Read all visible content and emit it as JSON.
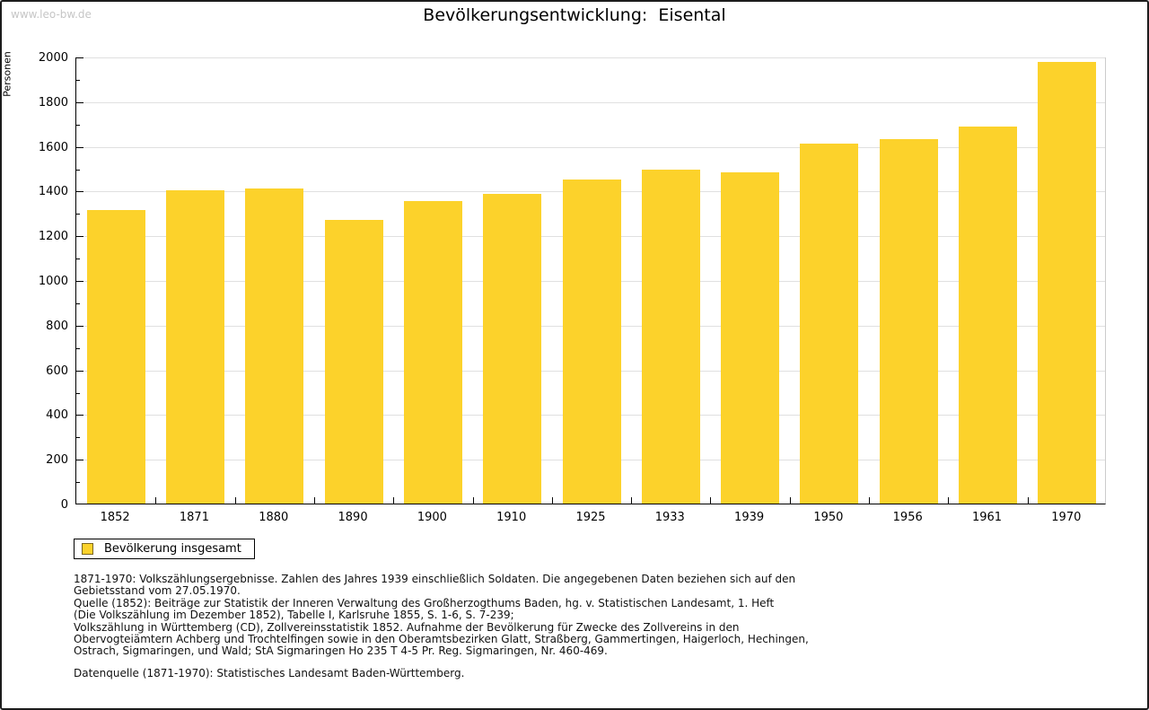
{
  "watermark": "www.leo-bw.de",
  "title": "Bevölkerungsentwicklung:  Eisental",
  "chart_data": {
    "type": "bar",
    "title": "Bevölkerungsentwicklung: Eisental",
    "categories": [
      "1852",
      "1871",
      "1880",
      "1890",
      "1900",
      "1910",
      "1925",
      "1933",
      "1939",
      "1950",
      "1956",
      "1961",
      "1970"
    ],
    "values": [
      1315,
      1400,
      1410,
      1270,
      1355,
      1385,
      1450,
      1495,
      1480,
      1610,
      1630,
      1685,
      1975
    ],
    "xlabel": "",
    "ylabel": "Personen",
    "ylim": [
      0,
      2000
    ],
    "ytick_step": 200,
    "yminor_step": 100,
    "grid": true,
    "bar_color": "#fcd22b",
    "legend": [
      {
        "label": "Bevölkerung insgesamt",
        "color": "#fcd22b"
      }
    ],
    "legend_position": "bottom-left"
  },
  "footer": {
    "notes": "1871-1970: Volkszählungsergebnisse. Zahlen des Jahres 1939 einschließlich Soldaten. Die angegebenen Daten beziehen sich auf den\nGebietsstand vom 27.05.1970.\nQuelle (1852): Beiträge zur Statistik der Inneren Verwaltung des Großherzogthums Baden, hg. v. Statistischen Landesamt, 1. Heft\n(Die Volkszählung im Dezember 1852), Tabelle I, Karlsruhe 1855, S. 1-6, S. 7-239;\nVolkszählung in Württemberg (CD), Zollvereinsstatistik 1852. Aufnahme der Bevölkerung für Zwecke des Zollvereins in den\nObervogteiämtern Achberg und Trochtelfingen sowie in den Oberamtsbezirken Glatt, Straßberg, Gammertingen, Haigerloch, Hechingen,\nOstrach, Sigmaringen, und Wald; StA Sigmaringen Ho 235 T 4-5 Pr. Reg. Sigmaringen, Nr. 460-469.",
    "datasource": "Datenquelle (1871-1970): Statistisches Landesamt Baden-Württemberg."
  }
}
